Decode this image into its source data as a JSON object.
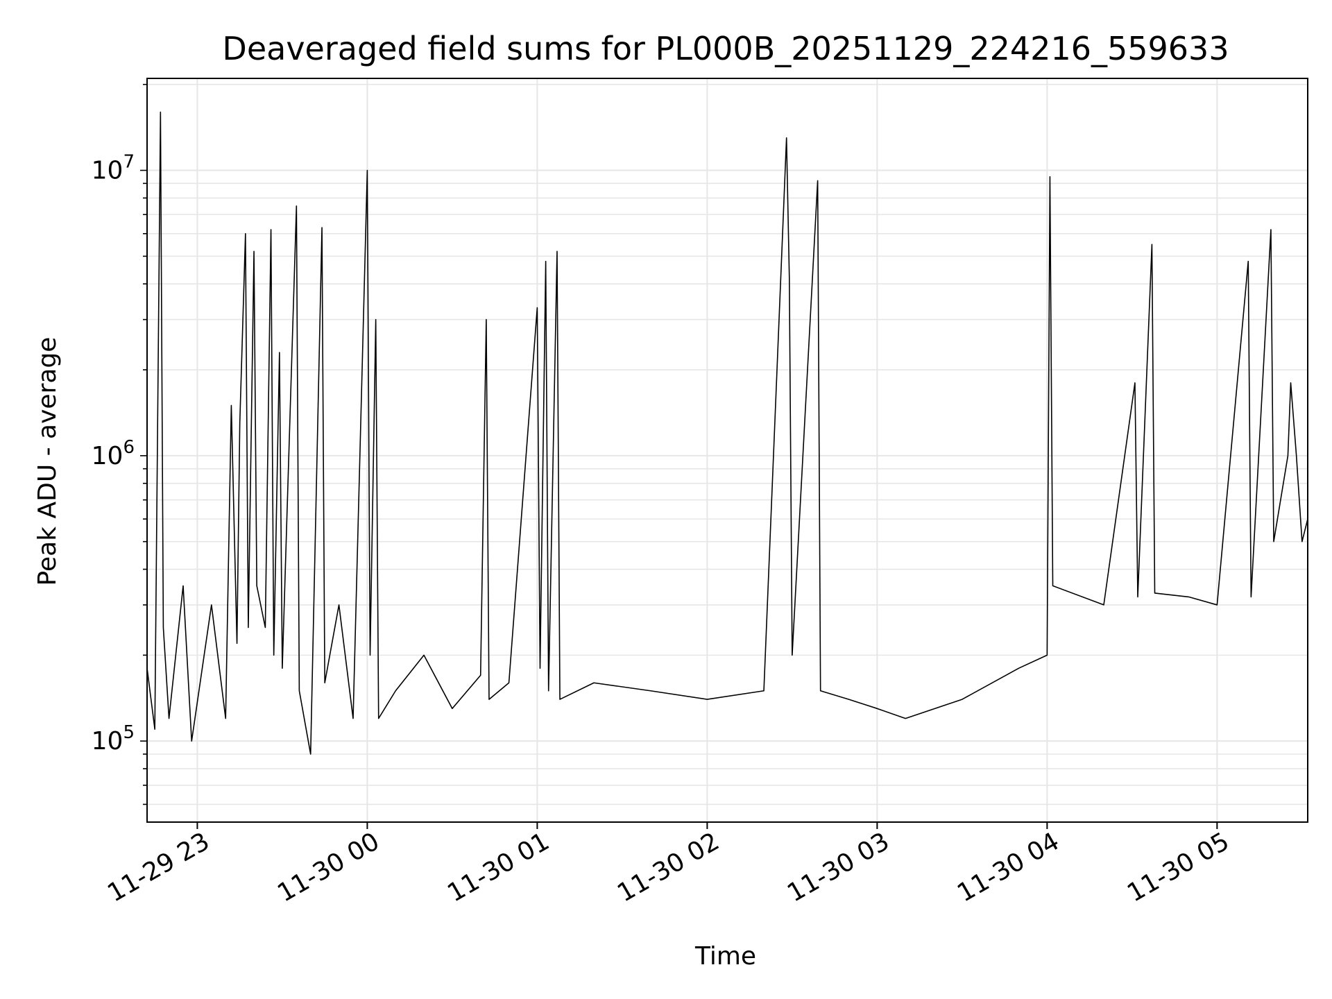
{
  "chart_data": {
    "type": "line",
    "title": "Deaveraged field sums for PL000B_20251129_224216_559633",
    "xlabel": "Time",
    "ylabel": "Peak ADU - average",
    "x_type": "datetime",
    "xlim": [
      "2025-11-29T22:42:16",
      "2025-11-30T05:32:00"
    ],
    "x_ticks": [
      {
        "value": "2025-11-29T23:00",
        "label": "11-29 23"
      },
      {
        "value": "2025-11-30T00:00",
        "label": "11-30 00"
      },
      {
        "value": "2025-11-30T01:00",
        "label": "11-30 01"
      },
      {
        "value": "2025-11-30T02:00",
        "label": "11-30 02"
      },
      {
        "value": "2025-11-30T03:00",
        "label": "11-30 03"
      },
      {
        "value": "2025-11-30T04:00",
        "label": "11-30 04"
      },
      {
        "value": "2025-11-30T05:00",
        "label": "11-30 05"
      }
    ],
    "y_scale": "log",
    "ylim": [
      52000,
      21000000
    ],
    "y_ticks": [
      {
        "value": 100000,
        "base": "10",
        "exp": "5"
      },
      {
        "value": 1000000,
        "base": "10",
        "exp": "6"
      },
      {
        "value": 10000000,
        "base": "10",
        "exp": "7"
      }
    ],
    "grid": true,
    "line_color": "#000000",
    "grid_color": "#e6e6e6",
    "series": [
      {
        "points": [
          [
            "2025-11-29T22:42:16",
            180000
          ],
          [
            "2025-11-29T22:45:00",
            110000
          ],
          [
            "2025-11-29T22:47:00",
            16000000
          ],
          [
            "2025-11-29T22:48:00",
            250000
          ],
          [
            "2025-11-29T22:50:00",
            120000
          ],
          [
            "2025-11-29T22:55:00",
            350000
          ],
          [
            "2025-11-29T22:58:00",
            100000
          ],
          [
            "2025-11-29T23:05:00",
            300000
          ],
          [
            "2025-11-29T23:10:00",
            120000
          ],
          [
            "2025-11-29T23:12:00",
            1500000
          ],
          [
            "2025-11-29T23:14:00",
            220000
          ],
          [
            "2025-11-29T23:15:00",
            1300000
          ],
          [
            "2025-11-29T23:17:00",
            6000000
          ],
          [
            "2025-11-29T23:18:00",
            250000
          ],
          [
            "2025-11-29T23:20:00",
            5200000
          ],
          [
            "2025-11-29T23:21:00",
            350000
          ],
          [
            "2025-11-29T23:24:00",
            250000
          ],
          [
            "2025-11-29T23:26:00",
            6200000
          ],
          [
            "2025-11-29T23:27:00",
            200000
          ],
          [
            "2025-11-29T23:29:00",
            2300000
          ],
          [
            "2025-11-29T23:30:00",
            180000
          ],
          [
            "2025-11-29T23:35:00",
            7500000
          ],
          [
            "2025-11-29T23:36:00",
            150000
          ],
          [
            "2025-11-29T23:40:00",
            90000
          ],
          [
            "2025-11-29T23:44:00",
            6300000
          ],
          [
            "2025-11-29T23:45:00",
            160000
          ],
          [
            "2025-11-29T23:50:00",
            300000
          ],
          [
            "2025-11-29T23:55:00",
            120000
          ],
          [
            "2025-11-30T00:00:00",
            10000000
          ],
          [
            "2025-11-30T00:01:00",
            200000
          ],
          [
            "2025-11-30T00:03:00",
            3000000
          ],
          [
            "2025-11-30T00:04:00",
            120000
          ],
          [
            "2025-11-30T00:10:00",
            150000
          ],
          [
            "2025-11-30T00:20:00",
            200000
          ],
          [
            "2025-11-30T00:30:00",
            130000
          ],
          [
            "2025-11-30T00:40:00",
            170000
          ],
          [
            "2025-11-30T00:42:00",
            3000000
          ],
          [
            "2025-11-30T00:43:00",
            140000
          ],
          [
            "2025-11-30T00:50:00",
            160000
          ],
          [
            "2025-11-30T01:00:00",
            3300000
          ],
          [
            "2025-11-30T01:01:00",
            180000
          ],
          [
            "2025-11-30T01:03:00",
            4800000
          ],
          [
            "2025-11-30T01:04:00",
            150000
          ],
          [
            "2025-11-30T01:07:00",
            5200000
          ],
          [
            "2025-11-30T01:08:00",
            140000
          ],
          [
            "2025-11-30T01:20:00",
            160000
          ],
          [
            "2025-11-30T01:40:00",
            150000
          ],
          [
            "2025-11-30T02:00:00",
            140000
          ],
          [
            "2025-11-30T02:20:00",
            150000
          ],
          [
            "2025-11-30T02:28:00",
            13000000
          ],
          [
            "2025-11-30T02:29:00",
            4200000
          ],
          [
            "2025-11-30T02:30:00",
            200000
          ],
          [
            "2025-11-30T02:39:00",
            9200000
          ],
          [
            "2025-11-30T02:40:00",
            150000
          ],
          [
            "2025-11-30T02:50:00",
            140000
          ],
          [
            "2025-11-30T03:00:00",
            130000
          ],
          [
            "2025-11-30T03:10:00",
            120000
          ],
          [
            "2025-11-30T03:30:00",
            140000
          ],
          [
            "2025-11-30T03:50:00",
            180000
          ],
          [
            "2025-11-30T04:00:00",
            200000
          ],
          [
            "2025-11-30T04:01:00",
            9500000
          ],
          [
            "2025-11-30T04:02:00",
            350000
          ],
          [
            "2025-11-30T04:20:00",
            300000
          ],
          [
            "2025-11-30T04:31:00",
            1800000
          ],
          [
            "2025-11-30T04:32:00",
            320000
          ],
          [
            "2025-11-30T04:37:00",
            5500000
          ],
          [
            "2025-11-30T04:38:00",
            330000
          ],
          [
            "2025-11-30T04:50:00",
            320000
          ],
          [
            "2025-11-30T05:00:00",
            300000
          ],
          [
            "2025-11-30T05:11:00",
            4800000
          ],
          [
            "2025-11-30T05:12:00",
            320000
          ],
          [
            "2025-11-30T05:19:00",
            6200000
          ],
          [
            "2025-11-30T05:20:00",
            500000
          ],
          [
            "2025-11-30T05:25:00",
            1000000
          ],
          [
            "2025-11-30T05:26:00",
            1800000
          ],
          [
            "2025-11-30T05:28:00",
            1000000
          ],
          [
            "2025-11-30T05:30:00",
            500000
          ],
          [
            "2025-11-30T05:32:00",
            600000
          ]
        ]
      }
    ]
  }
}
